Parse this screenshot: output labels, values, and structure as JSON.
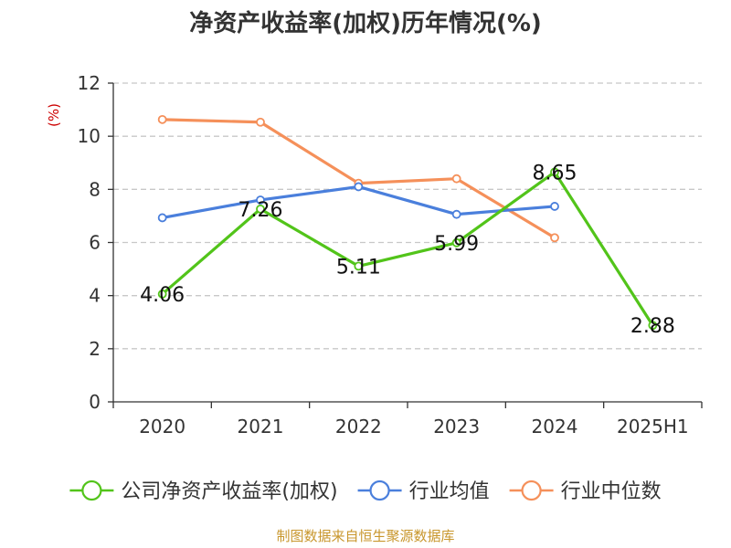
{
  "chart_data": {
    "type": "line",
    "title": "净资产收益率(加权)历年情况(%)",
    "ylabel": "(%)",
    "xlabel": "",
    "categories": [
      "2020",
      "2021",
      "2022",
      "2023",
      "2024",
      "2025H1"
    ],
    "yticks": [
      0,
      2,
      4,
      6,
      8,
      10,
      12
    ],
    "ylim": [
      0,
      12
    ],
    "grid": true,
    "legend_position": "bottom",
    "series": [
      {
        "name": "公司净资产收益率(加权)",
        "color": "#52c41a",
        "values": [
          4.06,
          7.26,
          5.11,
          5.99,
          8.65,
          2.88
        ],
        "labels": [
          "4.06",
          "7.26",
          "5.11",
          "5.99",
          "8.65",
          "2.88"
        ]
      },
      {
        "name": "行业均值",
        "color": "#4a7fdc",
        "values": [
          6.93,
          7.6,
          8.1,
          7.06,
          7.36,
          null
        ]
      },
      {
        "name": "行业中位数",
        "color": "#f5905a",
        "values": [
          10.63,
          10.53,
          8.23,
          8.4,
          6.18,
          null
        ]
      }
    ]
  },
  "source": "制图数据来自恒生聚源数据库"
}
